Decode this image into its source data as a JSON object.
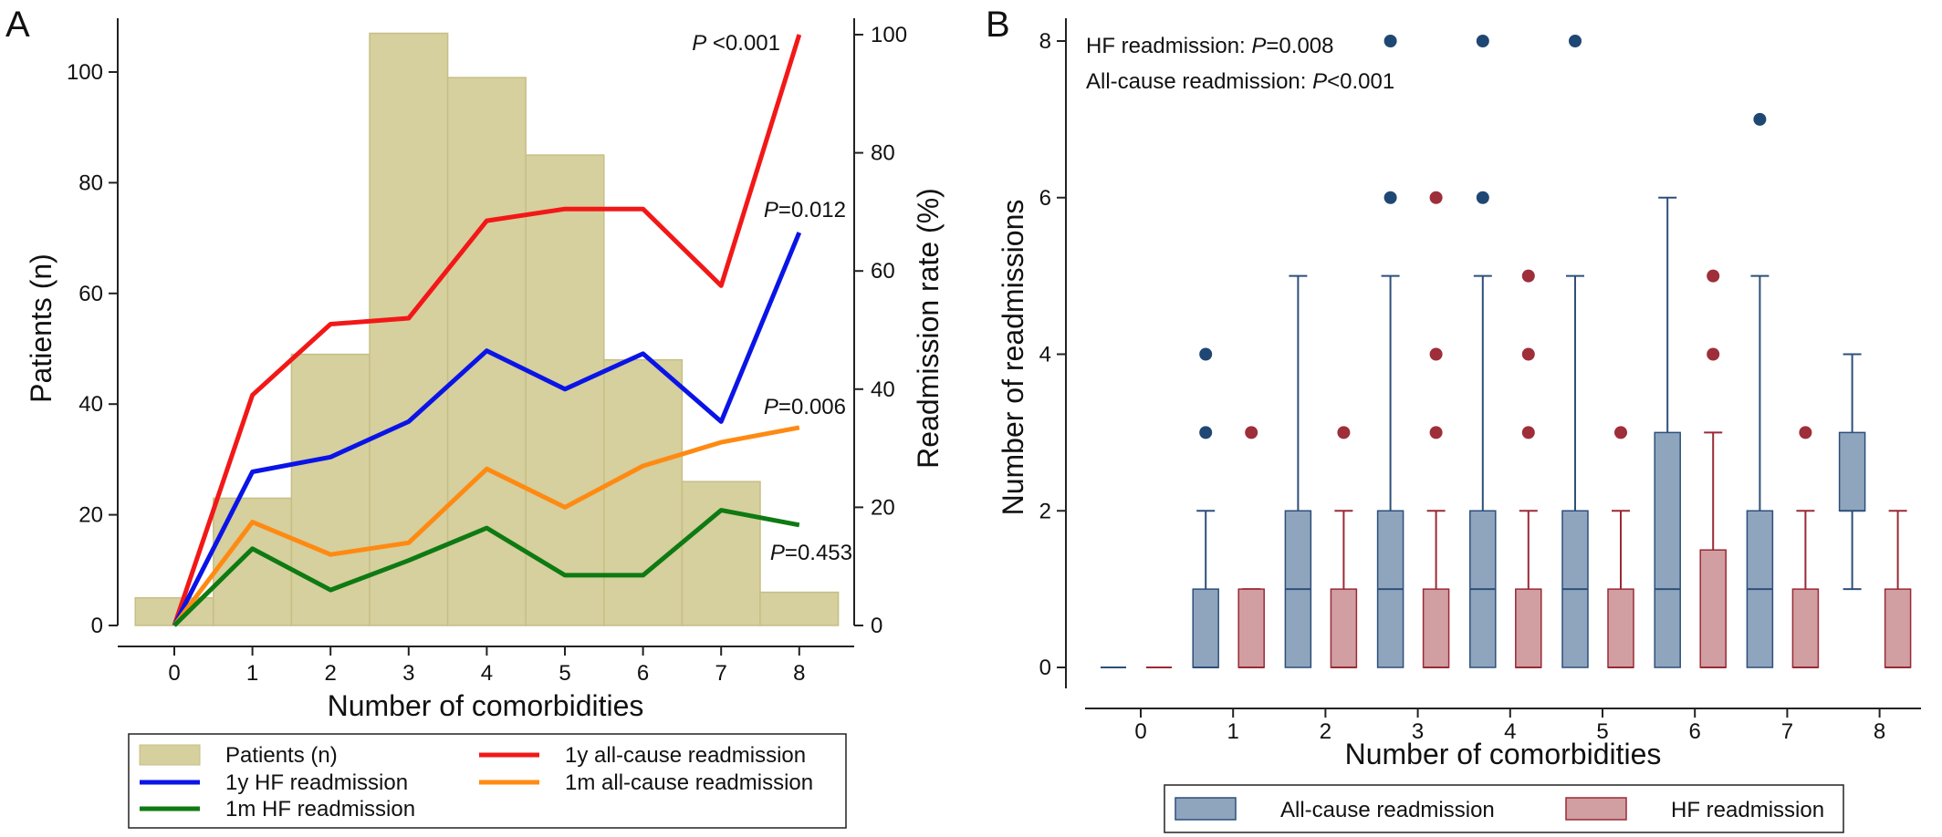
{
  "colors": {
    "bar_fill": "#d6cf9e",
    "bar_stroke": "#c6bf86",
    "hf_1y": "#0a14e6",
    "allcause_1y": "#f21818",
    "hf_1m": "#0e7a12",
    "allcause_1m": "#ff8a12",
    "box_all_fill": "#8fa5bd",
    "box_all_stroke": "#2d4f7b",
    "box_all_dot": "#1f4774",
    "box_hf_fill": "#d19ea2",
    "box_hf_stroke": "#9a2a36",
    "box_hf_dot": "#9e2e39"
  },
  "panel_a": {
    "label": "A",
    "xlabel": "Number of comorbidities",
    "ylabel_left": "Patients (n)",
    "ylabel_right": "Readmission rate (%)",
    "annotations": [
      {
        "prefix": "P",
        "text": " <0.001",
        "series": "1y all-cause readmission"
      },
      {
        "prefix": "P",
        "text": "=0.012",
        "series": "1y HF readmission"
      },
      {
        "prefix": "P",
        "text": "=0.006",
        "series": "1m all-cause readmission"
      },
      {
        "prefix": "P",
        "text": "=0.453",
        "series": "1m HF readmission"
      }
    ],
    "legend": [
      {
        "label": "Patients (n)",
        "kind": "bar"
      },
      {
        "label": "1y all-cause readmission",
        "kind": "line",
        "color": "#f21818"
      },
      {
        "label": "1y HF readmission",
        "kind": "line",
        "color": "#0a14e6"
      },
      {
        "label": "1m all-cause readmission",
        "kind": "line",
        "color": "#ff8a12"
      },
      {
        "label": "1m HF readmission",
        "kind": "line",
        "color": "#0e7a12"
      }
    ]
  },
  "panel_b": {
    "label": "B",
    "xlabel": "Number of comorbidities",
    "ylabel": "Number of readmissions",
    "annotations": [
      {
        "text": "HF readmission: ",
        "prefix": "P",
        "value": "=0.008"
      },
      {
        "text": "All-cause readmission: ",
        "prefix": "P",
        "value": "<0.001"
      }
    ],
    "legend": [
      {
        "label": "All-cause readmission",
        "kind": "box_all"
      },
      {
        "label": "HF readmission",
        "kind": "box_hf"
      }
    ]
  },
  "chart_data": [
    {
      "type": "bar",
      "panel": "A",
      "x": [
        0,
        1,
        2,
        3,
        4,
        5,
        6,
        7,
        8
      ],
      "xlabel": "Number of comorbidities",
      "ylabel": "Patients (n)",
      "ylim": [
        0,
        110
      ],
      "y2label": "Readmission rate (%)",
      "y2lim": [
        0,
        102
      ],
      "yticks": [
        0,
        20,
        40,
        60,
        80,
        100
      ],
      "y2ticks": [
        0,
        20,
        40,
        60,
        80,
        100
      ],
      "series": [
        {
          "name": "Patients (n)",
          "type": "bar",
          "axis": "left",
          "values": [
            5,
            23,
            49,
            107,
            99,
            85,
            48,
            26,
            6
          ]
        },
        {
          "name": "1y all-cause readmission",
          "type": "line",
          "axis": "right",
          "values": [
            0,
            39,
            51,
            52,
            68.5,
            70.5,
            70.5,
            57.5,
            100
          ]
        },
        {
          "name": "1y HF readmission",
          "type": "line",
          "axis": "right",
          "values": [
            0,
            26,
            28.5,
            34.5,
            46.5,
            40,
            46,
            34.5,
            66.5
          ]
        },
        {
          "name": "1m all-cause readmission",
          "type": "line",
          "axis": "right",
          "values": [
            0,
            17.5,
            12,
            14,
            26.5,
            20,
            27,
            31,
            33.5
          ]
        },
        {
          "name": "1m HF readmission",
          "type": "line",
          "axis": "right",
          "values": [
            0,
            13,
            6,
            11,
            16.5,
            8.5,
            8.5,
            19.5,
            17
          ]
        }
      ],
      "grid": false,
      "legend": "bottom"
    },
    {
      "type": "box",
      "panel": "B",
      "categories": [
        0,
        1,
        2,
        3,
        4,
        5,
        6,
        7,
        8
      ],
      "xlabel": "Number of comorbidities",
      "ylabel": "Number of readmissions",
      "ylim": [
        0,
        8
      ],
      "yticks": [
        0,
        2,
        4,
        6,
        8
      ],
      "grid": false,
      "legend": "bottom",
      "series": [
        {
          "name": "All-cause readmission",
          "boxes": [
            {
              "q1": 0,
              "median": 0,
              "q3": 0,
              "lower": 0,
              "upper": 0,
              "outliers": []
            },
            {
              "q1": 0,
              "median": 0,
              "q3": 1,
              "lower": 0,
              "upper": 2,
              "outliers": [
                3,
                4
              ]
            },
            {
              "q1": 0,
              "median": 1,
              "q3": 2,
              "lower": 0,
              "upper": 5,
              "outliers": []
            },
            {
              "q1": 0,
              "median": 1,
              "q3": 2,
              "lower": 0,
              "upper": 5,
              "outliers": [
                6,
                8
              ]
            },
            {
              "q1": 0,
              "median": 1,
              "q3": 2,
              "lower": 0,
              "upper": 5,
              "outliers": [
                6,
                8
              ]
            },
            {
              "q1": 0,
              "median": 1,
              "q3": 2,
              "lower": 0,
              "upper": 5,
              "outliers": [
                8
              ]
            },
            {
              "q1": 0,
              "median": 1,
              "q3": 3,
              "lower": 0,
              "upper": 6,
              "outliers": []
            },
            {
              "q1": 0,
              "median": 1,
              "q3": 2,
              "lower": 0,
              "upper": 5,
              "outliers": [
                7
              ]
            },
            {
              "q1": 2,
              "median": 2,
              "q3": 3,
              "lower": 1,
              "upper": 4,
              "outliers": []
            }
          ]
        },
        {
          "name": "HF readmission",
          "boxes": [
            {
              "q1": 0,
              "median": 0,
              "q3": 0,
              "lower": 0,
              "upper": 0,
              "outliers": []
            },
            {
              "q1": 0,
              "median": 0,
              "q3": 1,
              "lower": 0,
              "upper": 1,
              "outliers": [
                3
              ]
            },
            {
              "q1": 0,
              "median": 0,
              "q3": 1,
              "lower": 0,
              "upper": 2,
              "outliers": [
                3
              ]
            },
            {
              "q1": 0,
              "median": 0,
              "q3": 1,
              "lower": 0,
              "upper": 2,
              "outliers": [
                3,
                4,
                6
              ]
            },
            {
              "q1": 0,
              "median": 0,
              "q3": 1,
              "lower": 0,
              "upper": 2,
              "outliers": [
                3,
                4,
                5
              ]
            },
            {
              "q1": 0,
              "median": 0,
              "q3": 1,
              "lower": 0,
              "upper": 2,
              "outliers": [
                3
              ]
            },
            {
              "q1": 0,
              "median": 0,
              "q3": 1.5,
              "lower": 0,
              "upper": 3,
              "outliers": [
                4,
                5
              ]
            },
            {
              "q1": 0,
              "median": 0,
              "q3": 1,
              "lower": 0,
              "upper": 2,
              "outliers": [
                3
              ]
            },
            {
              "q1": 0,
              "median": 0,
              "q3": 1,
              "lower": 0,
              "upper": 2,
              "outliers": []
            }
          ]
        }
      ]
    }
  ]
}
